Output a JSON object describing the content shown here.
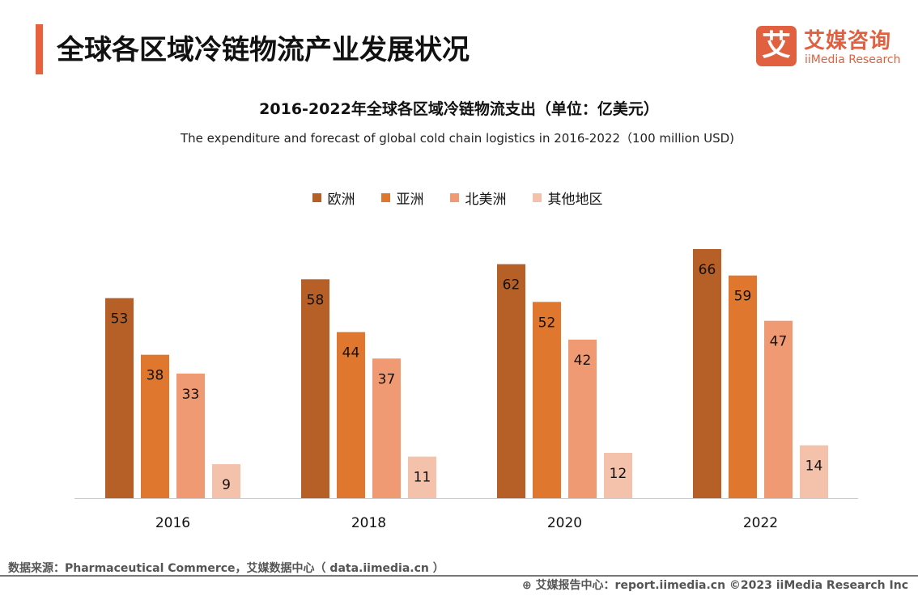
{
  "header": {
    "title": "全球各区域冷链物流产业发展状况",
    "logo_mark": "艾",
    "logo_cn": "艾媒咨询",
    "logo_en": "iiMedia Research"
  },
  "chart_data": {
    "type": "bar",
    "title": "2016-2022年全球各区域冷链物流支出（单位：亿美元）",
    "subtitle": "The expenditure and forecast of global cold chain logistics in 2016-2022（100 million USD)",
    "categories": [
      "2016",
      "2018",
      "2020",
      "2022"
    ],
    "series": [
      {
        "name": "欧洲",
        "color": "#B66027",
        "values": [
          53,
          58,
          62,
          66
        ]
      },
      {
        "name": "亚洲",
        "color": "#E0772F",
        "values": [
          38,
          44,
          52,
          59
        ]
      },
      {
        "name": "北美洲",
        "color": "#EF9A72",
        "values": [
          33,
          37,
          42,
          47
        ]
      },
      {
        "name": "其他地区",
        "color": "#F4C1AB",
        "values": [
          9,
          11,
          12,
          14
        ]
      }
    ],
    "legend": "top",
    "grid": false,
    "ylim": [
      0,
      66
    ]
  },
  "footer": {
    "source": "数据来源：Pharmaceutical Commerce，艾媒数据中心（ data.iimedia.cn ）",
    "right": "艾媒报告中心：report.iimedia.cn   ©2023  iiMedia Research  Inc"
  }
}
